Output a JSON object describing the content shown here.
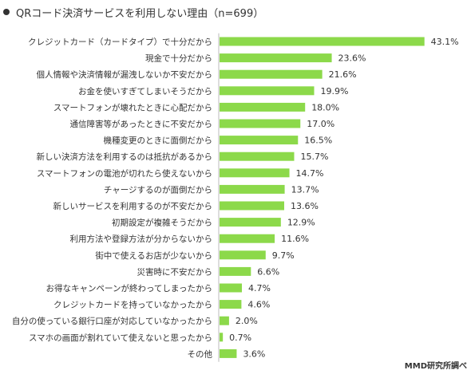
{
  "title": "QRコード決済サービスを利用しない理由（n=699）",
  "source": "MMD研究所調べ",
  "colors": {
    "bar": "#8CD94A",
    "text": "#333333",
    "axis_line": "#bbbbbb"
  },
  "chart_data": {
    "type": "bar",
    "orientation": "horizontal",
    "title": "QRコード決済サービスを利用しない理由（n=699）",
    "unit": "%",
    "categories": [
      "クレジットカード（カードタイプ）で十分だから",
      "現金で十分だから",
      "個人情報や決済情報が漏洩しないか不安だから",
      "お金を使いすぎてしまいそうだから",
      "スマートフォンが壊れたときに心配だから",
      "通信障害等があったときに不安だから",
      "機種変更のときに面倒だから",
      "新しい決済方法を利用するのは抵抗があるから",
      "スマートフォンの電池が切れたら使えないから",
      "チャージするのが面倒だから",
      "新しいサービスを利用するのが不安だから",
      "初期設定が複雑そうだから",
      "利用方法や登録方法が分からないから",
      "街中で使えるお店が少ないから",
      "災害時に不安だから",
      "お得なキャンペーンが終わってしまったから",
      "クレジットカードを持っていなかったから",
      "自分の使っている銀行口座が対応していなかったから",
      "スマホの画面が割れていて使えないと思ったから",
      "その他"
    ],
    "values": [
      43.1,
      23.6,
      21.6,
      19.9,
      18.0,
      17.0,
      16.5,
      15.7,
      14.7,
      13.7,
      13.6,
      12.9,
      11.6,
      9.7,
      6.6,
      4.7,
      4.6,
      2.0,
      0.7,
      3.6
    ],
    "value_labels": [
      "43.1%",
      "23.6%",
      "21.6%",
      "19.9%",
      "18.0%",
      "17.0%",
      "16.5%",
      "15.7%",
      "14.7%",
      "13.7%",
      "13.6%",
      "12.9%",
      "11.6%",
      "9.7%",
      "6.6%",
      "4.7%",
      "4.6%",
      "2.0%",
      "0.7%",
      "3.6%"
    ],
    "xlim": [
      0,
      45
    ],
    "grid": false,
    "legend": "none"
  }
}
